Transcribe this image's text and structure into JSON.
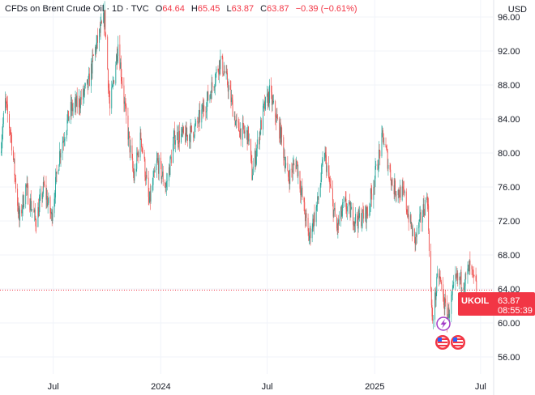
{
  "legend": {
    "symbol": "CFDs on Brent Crude Oil · 1D · TVC",
    "open_label": "O",
    "open": "64.64",
    "high_label": "H",
    "high": "65.45",
    "low_label": "L",
    "low": "63.87",
    "close_label": "C",
    "close": "63.87",
    "change": "−0.39 (−0.61%)"
  },
  "currency": "USD",
  "price_label": {
    "ticker": "UKOIL",
    "price": "63.87",
    "countdown": "08:55:39"
  },
  "colors": {
    "up": "#26a69a",
    "down": "#ef5350",
    "label_bg": "#f23645",
    "grid": "#f0f3fa",
    "text": "#131722"
  },
  "icons": [
    "lightning-event-icon",
    "us-flag-event-icon",
    "us-flag-event-icon"
  ],
  "chart_data": {
    "type": "candlestick",
    "ylim": [
      54,
      98
    ],
    "y_ticks": [
      56.0,
      60.0,
      64.0,
      68.0,
      72.0,
      76.0,
      80.0,
      84.0,
      88.0,
      92.0,
      96.0
    ],
    "y_tick_labels": [
      "56.00",
      "60.00",
      "64.00",
      "68.00",
      "72.00",
      "76.00",
      "80.00",
      "84.00",
      "88.00",
      "92.00",
      "96.00"
    ],
    "x_range": [
      "2023-04-01",
      "2025-07-22"
    ],
    "x_ticks": [
      {
        "date": "2023-07-01",
        "label": "Jul"
      },
      {
        "date": "2024-01-01",
        "label": "2024"
      },
      {
        "date": "2024-07-01",
        "label": "Jul"
      },
      {
        "date": "2025-01-01",
        "label": "2025"
      },
      {
        "date": "2025-07-01",
        "label": "Jul"
      }
    ],
    "last_close": 63.87,
    "path": [
      [
        "2023-04-01",
        80
      ],
      [
        "2023-04-10",
        86
      ],
      [
        "2023-04-20",
        82
      ],
      [
        "2023-05-04",
        72
      ],
      [
        "2023-05-15",
        76
      ],
      [
        "2023-06-01",
        72
      ],
      [
        "2023-06-15",
        76
      ],
      [
        "2023-06-28",
        72.5
      ],
      [
        "2023-07-12",
        80
      ],
      [
        "2023-07-30",
        85
      ],
      [
        "2023-08-15",
        86
      ],
      [
        "2023-08-30",
        88
      ],
      [
        "2023-09-10",
        92
      ],
      [
        "2023-09-27",
        96
      ],
      [
        "2023-10-06",
        85
      ],
      [
        "2023-10-20",
        93
      ],
      [
        "2023-11-01",
        85
      ],
      [
        "2023-11-16",
        77
      ],
      [
        "2023-11-28",
        82
      ],
      [
        "2023-12-12",
        74
      ],
      [
        "2023-12-26",
        79
      ],
      [
        "2024-01-10",
        76
      ],
      [
        "2024-01-25",
        82
      ],
      [
        "2024-02-15",
        82
      ],
      [
        "2024-03-01",
        83
      ],
      [
        "2024-03-25",
        87
      ],
      [
        "2024-04-12",
        91
      ],
      [
        "2024-04-25",
        88
      ],
      [
        "2024-05-10",
        83
      ],
      [
        "2024-05-30",
        82
      ],
      [
        "2024-06-05",
        77.5
      ],
      [
        "2024-06-25",
        85
      ],
      [
        "2024-07-05",
        87
      ],
      [
        "2024-07-25",
        82
      ],
      [
        "2024-08-05",
        77
      ],
      [
        "2024-08-20",
        79
      ],
      [
        "2024-09-10",
        70
      ],
      [
        "2024-09-25",
        74
      ],
      [
        "2024-10-07",
        80
      ],
      [
        "2024-10-28",
        71
      ],
      [
        "2024-11-10",
        74
      ],
      [
        "2024-12-01",
        72
      ],
      [
        "2024-12-20",
        73
      ],
      [
        "2025-01-15",
        82
      ],
      [
        "2025-02-01",
        76
      ],
      [
        "2025-02-20",
        75
      ],
      [
        "2025-03-10",
        69.5
      ],
      [
        "2025-04-01",
        75
      ],
      [
        "2025-04-09",
        60
      ],
      [
        "2025-04-20",
        66
      ],
      [
        "2025-05-05",
        60.5
      ],
      [
        "2025-05-20",
        65
      ],
      [
        "2025-06-05",
        65
      ],
      [
        "2025-06-12",
        66.5
      ],
      [
        "2025-06-24",
        64
      ]
    ]
  }
}
